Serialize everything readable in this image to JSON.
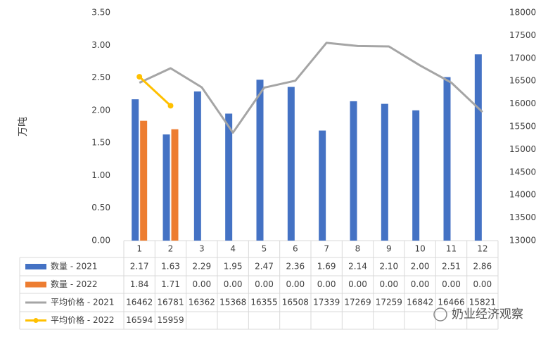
{
  "chart_data": {
    "type": "bar_line_table",
    "y_axis_label": "万吨",
    "categories": [
      "1",
      "2",
      "3",
      "4",
      "5",
      "6",
      "7",
      "8",
      "9",
      "10",
      "11",
      "12"
    ],
    "series": [
      {
        "name": "数量 - 2021",
        "color": "#4472c4",
        "kind": "bar",
        "values": [
          2.17,
          1.63,
          2.29,
          1.95,
          2.47,
          2.36,
          1.69,
          2.14,
          2.1,
          2,
          2.51,
          2.86
        ],
        "value_labels": [
          "2.17",
          "1.63",
          "2.29",
          "1.95",
          "2.47",
          "2.36",
          "1.69",
          "2.14",
          "2.10",
          "2.00",
          "2.51",
          "2.86"
        ]
      },
      {
        "name": "数量 - 2022",
        "color": "#ed7d31",
        "kind": "bar",
        "values": [
          1.84,
          1.71,
          0,
          0,
          0,
          0,
          0,
          0,
          0,
          0,
          0,
          0
        ],
        "value_labels": [
          "1.84",
          "1.71",
          "0.00",
          "0.00",
          "0.00",
          "0.00",
          "0.00",
          "0.00",
          "0.00",
          "0.00",
          "0.00",
          "0.00"
        ]
      },
      {
        "name": "平均价格 - 2021",
        "color": "#a5a5a5",
        "kind": "line",
        "axis": "y2",
        "values": [
          16462,
          16781,
          16362,
          15368,
          16355,
          16508,
          17339,
          17269,
          17259,
          16842,
          16466,
          15821
        ]
      },
      {
        "name": "平均价格 - 2022",
        "color": "#ffc000",
        "kind": "line",
        "axis": "y2",
        "markers": true,
        "values": [
          16594,
          15959,
          null,
          null,
          null,
          null,
          null,
          null,
          null,
          null,
          null,
          null
        ]
      }
    ],
    "ylim": [
      0,
      3.5
    ],
    "yticks": [
      {
        "value": 0,
        "label": "0.00"
      },
      {
        "value": 0.5,
        "label": "0.50"
      },
      {
        "value": 1,
        "label": "1.00"
      },
      {
        "value": 1.5,
        "label": "1.50"
      },
      {
        "value": 2,
        "label": "2.00"
      },
      {
        "value": 2.5,
        "label": "2.50"
      },
      {
        "value": 3,
        "label": "3.00"
      },
      {
        "value": 3.5,
        "label": "3.50"
      }
    ],
    "y2lim": [
      13000,
      18000
    ],
    "y2ticks": [
      13000,
      13500,
      14000,
      14500,
      15000,
      15500,
      16000,
      16500,
      17000,
      17500,
      18000
    ],
    "grid": false,
    "watermark": "奶业经济观察"
  }
}
